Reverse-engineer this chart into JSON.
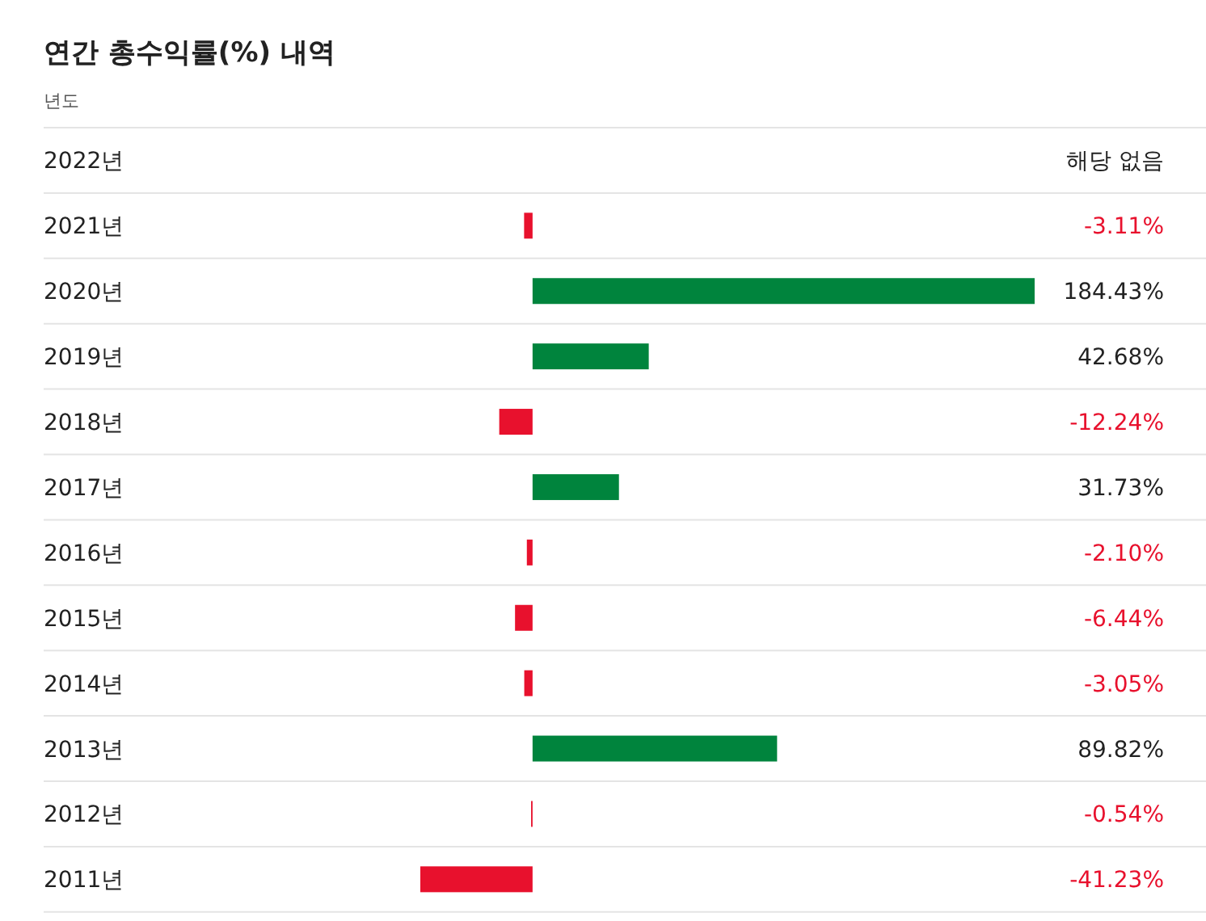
{
  "chart_data": {
    "type": "bar",
    "orientation": "horizontal",
    "title": "연간 총수익률(%) 내역",
    "ylabel": "년도",
    "categories": [
      "2022년",
      "2021년",
      "2020년",
      "2019년",
      "2018년",
      "2017년",
      "2016년",
      "2015년",
      "2014년",
      "2013년",
      "2012년",
      "2011년"
    ],
    "values": [
      null,
      -3.11,
      184.43,
      42.68,
      -12.24,
      31.73,
      -2.1,
      -6.44,
      -3.05,
      89.82,
      -0.54,
      -41.23
    ],
    "colors": [
      null,
      "#e8112d",
      "#00843d",
      "#00843d",
      "#e8112d",
      "#00843d",
      "#e8112d",
      "#e8112d",
      "#e8112d",
      "#00843d",
      "#e8112d",
      "#e8112d"
    ],
    "value_labels": [
      "해당 없음",
      "-3.11%",
      "184.43%",
      "42.68%",
      "-12.24%",
      "31.73%",
      "-2.10%",
      "-6.44%",
      "-3.05%",
      "89.82%",
      "-0.54%",
      "-41.23%"
    ]
  }
}
